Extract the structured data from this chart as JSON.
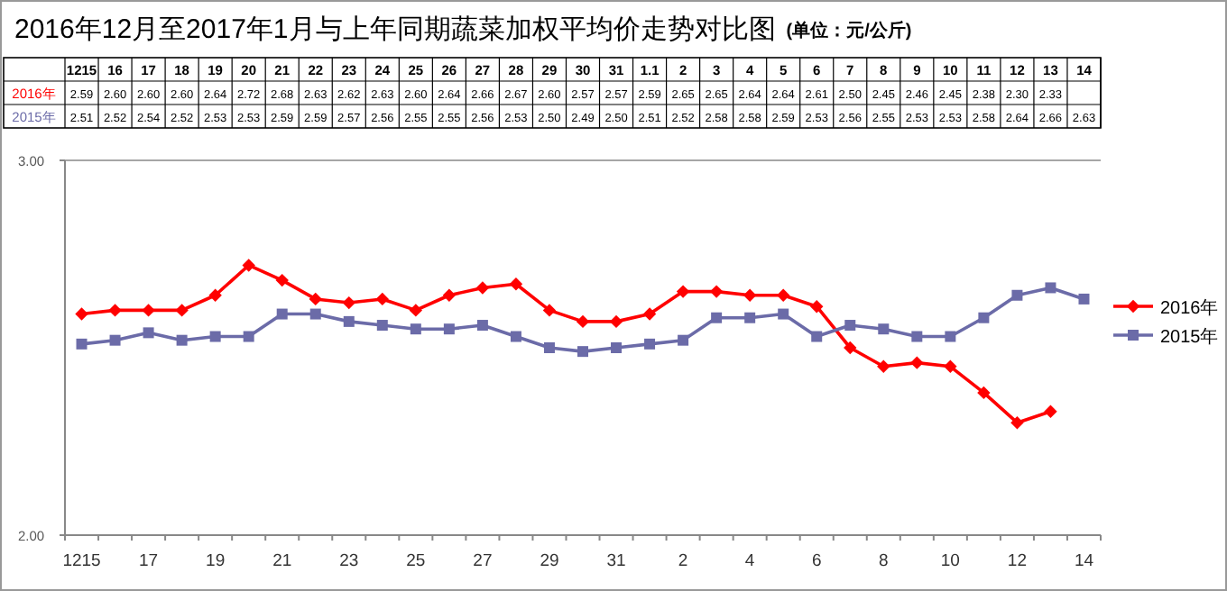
{
  "chart_data": {
    "type": "line",
    "title": "2016年12月至2017年1月与上年同期蔬菜加权平均价走势对比图",
    "subtitle": "(单位：元/公斤)",
    "categories": [
      "1215",
      "16",
      "17",
      "18",
      "19",
      "20",
      "21",
      "22",
      "23",
      "24",
      "25",
      "26",
      "27",
      "28",
      "29",
      "30",
      "31",
      "1.1",
      "2",
      "3",
      "4",
      "5",
      "6",
      "7",
      "8",
      "9",
      "10",
      "11",
      "12",
      "13",
      "14"
    ],
    "series": [
      {
        "name": "2016年",
        "color": "#ff0000",
        "marker": "diamond",
        "values": [
          2.59,
          2.6,
          2.6,
          2.6,
          2.64,
          2.72,
          2.68,
          2.63,
          2.62,
          2.63,
          2.6,
          2.64,
          2.66,
          2.67,
          2.6,
          2.57,
          2.57,
          2.59,
          2.65,
          2.65,
          2.64,
          2.64,
          2.61,
          2.5,
          2.45,
          2.46,
          2.45,
          2.38,
          2.3,
          2.33,
          null
        ],
        "value_labels": [
          "2.59",
          "2.60",
          "2.60",
          "2.60",
          "2.64",
          "2.72",
          "2.68",
          "2.63",
          "2.62",
          "2.63",
          "2.60",
          "2.64",
          "2.66",
          "2.67",
          "2.60",
          "2.57",
          "2.57",
          "2.59",
          "2.65",
          "2.65",
          "2.64",
          "2.64",
          "2.61",
          "2.50",
          "2.45",
          "2.46",
          "2.45",
          "2.38",
          "2.30",
          "2.33",
          null
        ]
      },
      {
        "name": "2015年",
        "color": "#6b6ba8",
        "marker": "square",
        "values": [
          2.51,
          2.52,
          2.54,
          2.52,
          2.53,
          2.53,
          2.59,
          2.59,
          2.57,
          2.56,
          2.55,
          2.55,
          2.56,
          2.53,
          2.5,
          2.49,
          2.5,
          2.51,
          2.52,
          2.58,
          2.58,
          2.59,
          2.53,
          2.56,
          2.55,
          2.53,
          2.53,
          2.58,
          2.64,
          2.66,
          2.63
        ],
        "value_labels": [
          "2.51",
          "2.52",
          "2.54",
          "2.52",
          "2.53",
          "2.53",
          "2.59",
          "2.59",
          "2.57",
          "2.56",
          "2.55",
          "2.55",
          "2.56",
          "2.53",
          "2.50",
          "2.49",
          "2.50",
          "2.51",
          "2.52",
          "2.58",
          "2.58",
          "2.59",
          "2.53",
          "2.56",
          "2.55",
          "2.53",
          "2.53",
          "2.58",
          "2.64",
          "2.66",
          "2.63"
        ]
      }
    ],
    "ylim": [
      2,
      3
    ],
    "yticks": [
      {
        "value": 2,
        "label": "2.00"
      },
      {
        "value": 3,
        "label": "3.00"
      }
    ],
    "grid": "y",
    "legend": "right"
  }
}
